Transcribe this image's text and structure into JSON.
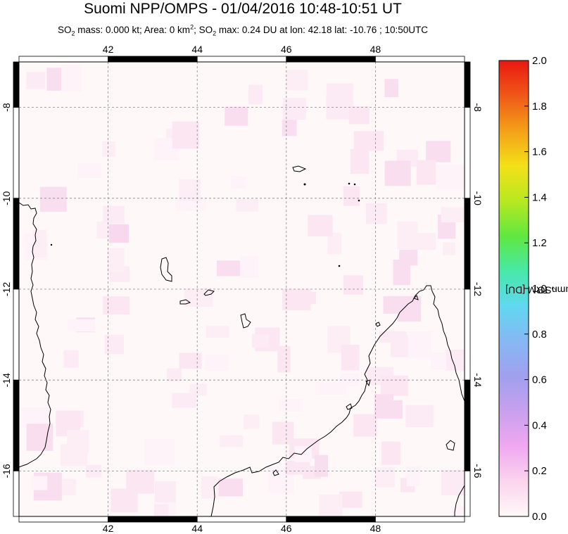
{
  "title": "Suomi NPP/OMPS - 01/04/2016 10:48-10:51 UT",
  "subtitle": {
    "so2_prefix": "SO",
    "so2_sub": "2",
    "mass_text": " mass: 0.000 kt; Area: 0 km",
    "area_sup": "2",
    "max_prefix": "; SO",
    "max_sub": "2",
    "max_text": " max: 0.24 DU at lon: 42.18 lat: -10.76 ; 10:50UTC"
  },
  "map": {
    "lon_range": [
      40.0,
      50.0
    ],
    "lat_range": [
      -17.0,
      -7.0
    ],
    "lon_ticks": [
      42,
      44,
      46,
      48
    ],
    "lat_ticks": [
      -8,
      -10,
      -12,
      -14,
      -16
    ],
    "lon_tick_labels": [
      "42",
      "44",
      "46",
      "48"
    ],
    "lat_tick_labels": [
      "-8",
      "-10",
      "-12",
      "-14",
      "-16"
    ],
    "grid": true,
    "grid_style": "dashed",
    "land_color": "#ffffff",
    "coast_color": "#000000",
    "so2_max_location": {
      "lon": 42.18,
      "lat": -10.76,
      "value": 0.24
    }
  },
  "colorbar": {
    "label_prefix": "SO",
    "label_sub": "2",
    "label_suffix": " column TRM [DU]",
    "min": 0.0,
    "max": 2.0,
    "tick_labels": [
      "2.0",
      "1.8",
      "1.6",
      "1.4",
      "1.2",
      "1.0",
      "0.8",
      "0.6",
      "0.4",
      "0.2",
      "0.0"
    ],
    "colors": [
      "#fff8f8",
      "#fbd4ee",
      "#f0a8f0",
      "#c8a0ee",
      "#a0a0ee",
      "#86b8f4",
      "#60d8f0",
      "#48e8a8",
      "#60e840",
      "#b8e820",
      "#f4e018",
      "#f4a018",
      "#f05818",
      "#e81810"
    ]
  }
}
